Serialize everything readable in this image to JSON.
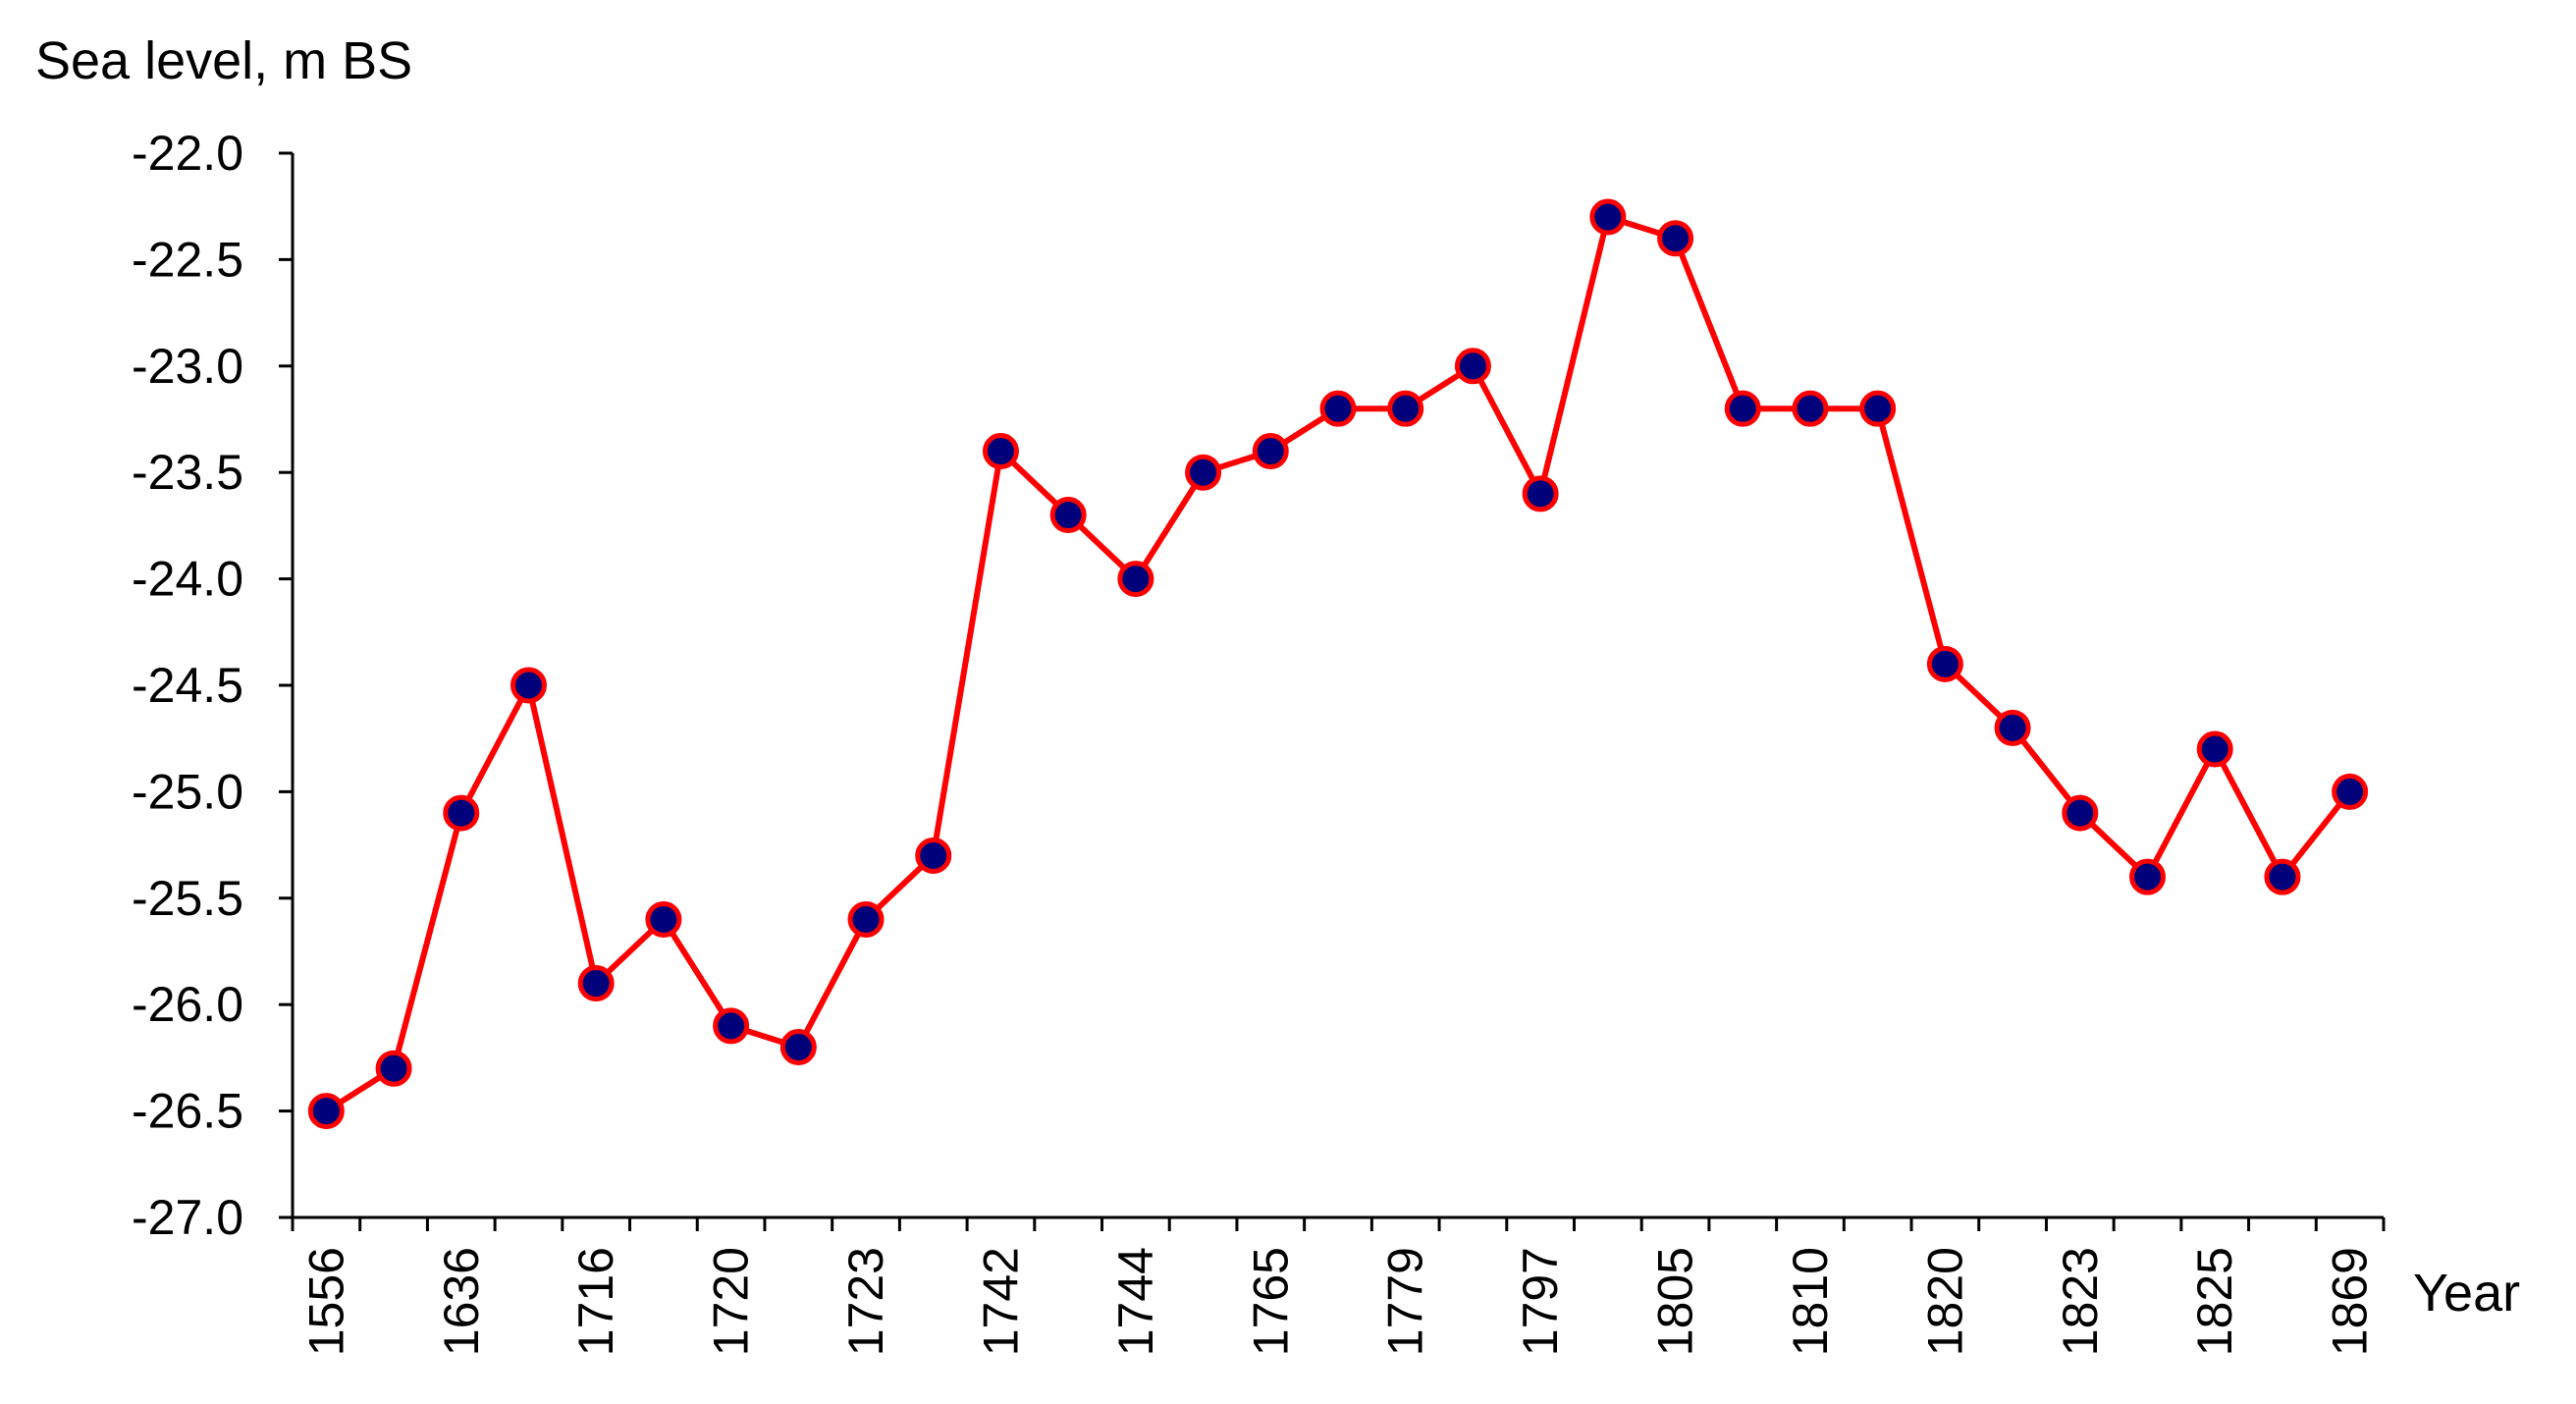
{
  "chart_data": {
    "type": "line",
    "title": "",
    "ylabel": "Sea level, m BS",
    "xlabel": "Year",
    "ylim": [
      -27.0,
      -22.0
    ],
    "ytick_step": 0.5,
    "grid": false,
    "legend": "none",
    "x_tick_labels": [
      "1556",
      "1636",
      "1716",
      "1720",
      "1723",
      "1742",
      "1744",
      "1765",
      "1779",
      "1797",
      "1805",
      "1810",
      "1820",
      "1823",
      "1825",
      "1869"
    ],
    "series": [
      {
        "values": [
          -26.5,
          -26.3,
          -25.1,
          -24.5,
          -25.9,
          -25.6,
          -26.1,
          -26.2,
          -25.6,
          -25.3,
          -23.4,
          -23.7,
          -24.0,
          -23.5,
          -23.4,
          -23.2,
          -23.2,
          -23.0,
          -23.6,
          -22.3,
          -22.4,
          -23.2,
          -23.2,
          -23.2,
          -24.4,
          -24.7,
          -25.1,
          -25.4,
          -24.8,
          -25.4,
          -25.0
        ],
        "line_color": "#ff0000",
        "marker_fill": "#00007a",
        "marker_edge": "#ff0000"
      }
    ]
  }
}
